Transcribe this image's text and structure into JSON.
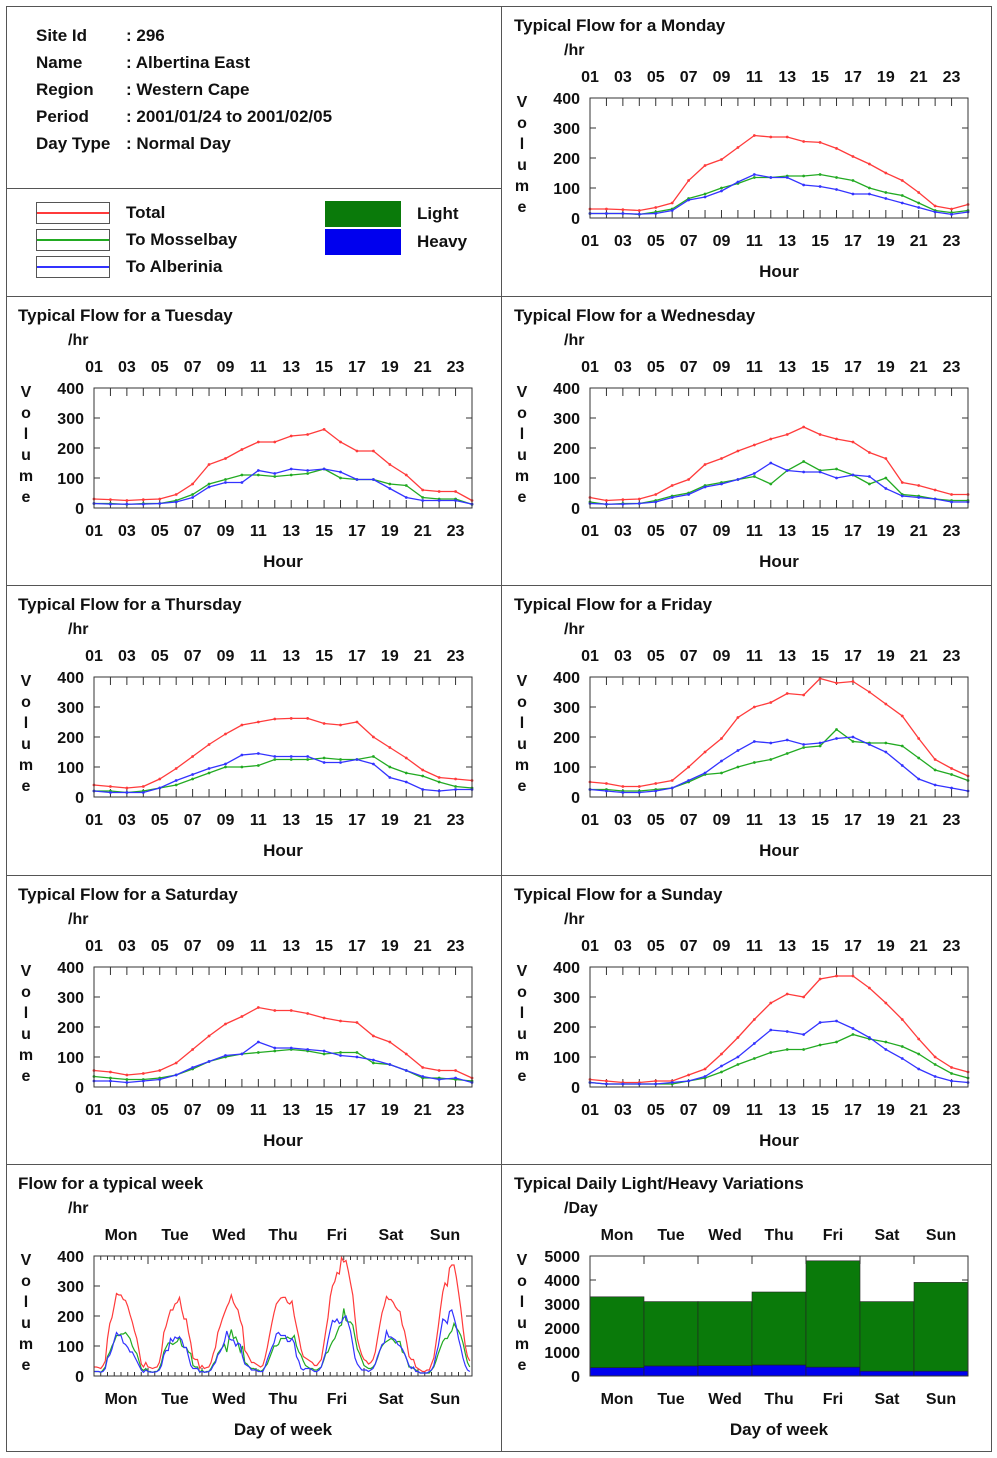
{
  "site_info": [
    {
      "key": "Site Id",
      "value": ": 296"
    },
    {
      "key": "Name",
      "value": ": Albertina East"
    },
    {
      "key": "Region",
      "value": ": Western Cape"
    },
    {
      "key": "Period",
      "value": ": 2001/01/24 to 2001/02/05"
    },
    {
      "key": "Day Type",
      "value": ": Normal Day"
    }
  ],
  "legend": {
    "total": "Total",
    "mosselbay": "To Mosselbay",
    "alberinia": "To Alberinia",
    "light": "Light",
    "heavy": "Heavy"
  },
  "colors": {
    "total": "#ff3b3b",
    "mosselbay": "#22aa22",
    "alberinia": "#3333ff",
    "light": "#0a7a0a",
    "heavy": "#0000ee"
  },
  "labels": {
    "unit_hr": "/hr",
    "unit_day": "/Day",
    "volume": "Volume",
    "hour": "Hour",
    "day_of_week": "Day of week"
  },
  "chart_data": [
    {
      "type": "line",
      "title": "Typical Flow for a Monday",
      "xlabel": "Hour",
      "ylabel": "Volume",
      "unit": "/hr",
      "x": [
        0,
        1,
        2,
        3,
        4,
        5,
        6,
        7,
        8,
        9,
        10,
        11,
        12,
        13,
        14,
        15,
        16,
        17,
        18,
        19,
        20,
        21,
        22,
        23
      ],
      "xticks": [
        "01",
        "03",
        "05",
        "07",
        "09",
        "11",
        "13",
        "15",
        "17",
        "19",
        "21",
        "23"
      ],
      "ylim": [
        0,
        400
      ],
      "yticks": [
        0,
        100,
        200,
        300,
        400
      ],
      "series": [
        {
          "name": "Total",
          "values": [
            30,
            30,
            28,
            25,
            35,
            50,
            125,
            175,
            195,
            235,
            275,
            270,
            270,
            255,
            252,
            232,
            205,
            180,
            150,
            125,
            85,
            40,
            30,
            45
          ]
        },
        {
          "name": "To Mosselbay",
          "values": [
            15,
            15,
            15,
            12,
            20,
            30,
            65,
            80,
            100,
            115,
            135,
            135,
            140,
            140,
            145,
            135,
            125,
            100,
            85,
            75,
            50,
            25,
            18,
            25
          ]
        },
        {
          "name": "To Alberinia",
          "values": [
            15,
            15,
            15,
            13,
            15,
            25,
            60,
            70,
            90,
            120,
            145,
            135,
            135,
            110,
            105,
            95,
            80,
            80,
            65,
            50,
            35,
            20,
            12,
            20
          ]
        }
      ]
    },
    {
      "type": "line",
      "title": "Typical Flow for a Tuesday",
      "xlabel": "Hour",
      "ylabel": "Volume",
      "unit": "/hr",
      "x": [
        0,
        1,
        2,
        3,
        4,
        5,
        6,
        7,
        8,
        9,
        10,
        11,
        12,
        13,
        14,
        15,
        16,
        17,
        18,
        19,
        20,
        21,
        22,
        23
      ],
      "xticks": [
        "01",
        "03",
        "05",
        "07",
        "09",
        "11",
        "13",
        "15",
        "17",
        "19",
        "21",
        "23"
      ],
      "ylim": [
        0,
        400
      ],
      "yticks": [
        0,
        100,
        200,
        300,
        400
      ],
      "series": [
        {
          "name": "Total",
          "values": [
            30,
            28,
            25,
            28,
            30,
            45,
            80,
            145,
            165,
            195,
            220,
            220,
            240,
            245,
            262,
            220,
            190,
            190,
            145,
            110,
            60,
            55,
            55,
            25
          ]
        },
        {
          "name": "To Mosselbay",
          "values": [
            15,
            15,
            12,
            15,
            15,
            25,
            45,
            80,
            95,
            110,
            110,
            105,
            110,
            115,
            130,
            100,
            95,
            95,
            80,
            75,
            35,
            30,
            30,
            12
          ]
        },
        {
          "name": "To Alberinia",
          "values": [
            15,
            13,
            13,
            13,
            15,
            20,
            35,
            70,
            85,
            85,
            125,
            115,
            130,
            125,
            130,
            120,
            95,
            95,
            65,
            35,
            25,
            25,
            25,
            13
          ]
        }
      ]
    },
    {
      "type": "line",
      "title": "Typical Flow for a Wednesday",
      "xlabel": "Hour",
      "ylabel": "Volume",
      "unit": "/hr",
      "x": [
        0,
        1,
        2,
        3,
        4,
        5,
        6,
        7,
        8,
        9,
        10,
        11,
        12,
        13,
        14,
        15,
        16,
        17,
        18,
        19,
        20,
        21,
        22,
        23
      ],
      "xticks": [
        "01",
        "03",
        "05",
        "07",
        "09",
        "11",
        "13",
        "15",
        "17",
        "19",
        "21",
        "23"
      ],
      "ylim": [
        0,
        400
      ],
      "yticks": [
        0,
        100,
        200,
        300,
        400
      ],
      "series": [
        {
          "name": "Total",
          "values": [
            35,
            25,
            28,
            30,
            45,
            75,
            95,
            145,
            165,
            190,
            210,
            230,
            245,
            270,
            245,
            230,
            220,
            185,
            165,
            85,
            75,
            60,
            45,
            45
          ]
        },
        {
          "name": "To Mosselbay",
          "values": [
            20,
            12,
            15,
            15,
            25,
            40,
            50,
            75,
            85,
            95,
            105,
            80,
            125,
            155,
            125,
            130,
            110,
            80,
            100,
            45,
            40,
            30,
            25,
            25
          ]
        },
        {
          "name": "To Alberinia",
          "values": [
            15,
            13,
            13,
            15,
            20,
            35,
            45,
            70,
            80,
            95,
            115,
            150,
            125,
            120,
            120,
            100,
            110,
            105,
            65,
            40,
            35,
            30,
            20,
            20
          ]
        }
      ]
    },
    {
      "type": "line",
      "title": "Typical Flow for a Thursday",
      "xlabel": "Hour",
      "ylabel": "Volume",
      "unit": "/hr",
      "x": [
        0,
        1,
        2,
        3,
        4,
        5,
        6,
        7,
        8,
        9,
        10,
        11,
        12,
        13,
        14,
        15,
        16,
        17,
        18,
        19,
        20,
        21,
        22,
        23
      ],
      "xticks": [
        "01",
        "03",
        "05",
        "07",
        "09",
        "11",
        "13",
        "15",
        "17",
        "19",
        "21",
        "23"
      ],
      "ylim": [
        0,
        400
      ],
      "yticks": [
        0,
        100,
        200,
        300,
        400
      ],
      "series": [
        {
          "name": "Total",
          "values": [
            40,
            35,
            30,
            35,
            60,
            95,
            135,
            175,
            210,
            240,
            250,
            260,
            262,
            262,
            245,
            240,
            250,
            200,
            165,
            130,
            90,
            65,
            60,
            55
          ]
        },
        {
          "name": "To Mosselbay",
          "values": [
            20,
            20,
            15,
            20,
            30,
            40,
            60,
            80,
            100,
            100,
            105,
            125,
            125,
            125,
            130,
            125,
            125,
            135,
            100,
            80,
            70,
            50,
            35,
            30
          ]
        },
        {
          "name": "To Alberinia",
          "values": [
            20,
            15,
            15,
            15,
            30,
            55,
            75,
            95,
            110,
            140,
            145,
            135,
            135,
            135,
            115,
            115,
            125,
            110,
            65,
            50,
            25,
            20,
            25,
            25
          ]
        }
      ]
    },
    {
      "type": "line",
      "title": "Typical Flow for a Friday",
      "xlabel": "Hour",
      "ylabel": "Volume",
      "unit": "/hr",
      "x": [
        0,
        1,
        2,
        3,
        4,
        5,
        6,
        7,
        8,
        9,
        10,
        11,
        12,
        13,
        14,
        15,
        16,
        17,
        18,
        19,
        20,
        21,
        22,
        23
      ],
      "xticks": [
        "01",
        "03",
        "05",
        "07",
        "09",
        "11",
        "13",
        "15",
        "17",
        "19",
        "21",
        "23"
      ],
      "ylim": [
        0,
        400
      ],
      "yticks": [
        0,
        100,
        200,
        300,
        400
      ],
      "series": [
        {
          "name": "Total",
          "values": [
            50,
            45,
            35,
            35,
            45,
            55,
            100,
            150,
            195,
            265,
            300,
            315,
            345,
            340,
            395,
            380,
            385,
            350,
            310,
            270,
            195,
            125,
            95,
            70
          ]
        },
        {
          "name": "To Mosselbay",
          "values": [
            25,
            25,
            20,
            20,
            25,
            30,
            50,
            75,
            80,
            100,
            115,
            125,
            145,
            165,
            170,
            225,
            185,
            180,
            180,
            170,
            130,
            90,
            75,
            55
          ]
        },
        {
          "name": "To Alberinia",
          "values": [
            25,
            20,
            15,
            15,
            20,
            30,
            55,
            80,
            120,
            155,
            185,
            180,
            190,
            175,
            180,
            195,
            200,
            175,
            150,
            105,
            60,
            40,
            30,
            20
          ]
        }
      ]
    },
    {
      "type": "line",
      "title": "Typical Flow for a Saturday",
      "xlabel": "Hour",
      "ylabel": "Volume",
      "unit": "/hr",
      "x": [
        0,
        1,
        2,
        3,
        4,
        5,
        6,
        7,
        8,
        9,
        10,
        11,
        12,
        13,
        14,
        15,
        16,
        17,
        18,
        19,
        20,
        21,
        22,
        23
      ],
      "xticks": [
        "01",
        "03",
        "05",
        "07",
        "09",
        "11",
        "13",
        "15",
        "17",
        "19",
        "21",
        "23"
      ],
      "ylim": [
        0,
        400
      ],
      "yticks": [
        0,
        100,
        200,
        300,
        400
      ],
      "series": [
        {
          "name": "Total",
          "values": [
            55,
            50,
            40,
            45,
            55,
            80,
            125,
            170,
            210,
            235,
            265,
            255,
            255,
            245,
            230,
            220,
            215,
            170,
            150,
            110,
            65,
            55,
            55,
            30
          ]
        },
        {
          "name": "To Mosselbay",
          "values": [
            35,
            30,
            25,
            25,
            30,
            40,
            60,
            85,
            100,
            110,
            115,
            120,
            125,
            120,
            110,
            115,
            115,
            80,
            75,
            55,
            30,
            30,
            25,
            20
          ]
        },
        {
          "name": "To Alberinia",
          "values": [
            20,
            20,
            15,
            20,
            25,
            40,
            65,
            85,
            105,
            110,
            150,
            130,
            130,
            125,
            120,
            105,
            100,
            90,
            75,
            55,
            35,
            25,
            30,
            15
          ]
        }
      ]
    },
    {
      "type": "line",
      "title": "Typical Flow for a Sunday",
      "xlabel": "Hour",
      "ylabel": "Volume",
      "unit": "/hr",
      "x": [
        0,
        1,
        2,
        3,
        4,
        5,
        6,
        7,
        8,
        9,
        10,
        11,
        12,
        13,
        14,
        15,
        16,
        17,
        18,
        19,
        20,
        21,
        22,
        23
      ],
      "xticks": [
        "01",
        "03",
        "05",
        "07",
        "09",
        "11",
        "13",
        "15",
        "17",
        "19",
        "21",
        "23"
      ],
      "ylim": [
        0,
        400
      ],
      "yticks": [
        0,
        100,
        200,
        300,
        400
      ],
      "series": [
        {
          "name": "Total",
          "values": [
            25,
            20,
            15,
            15,
            20,
            20,
            40,
            60,
            110,
            165,
            225,
            280,
            310,
            300,
            360,
            370,
            370,
            330,
            280,
            225,
            160,
            100,
            65,
            50
          ]
        },
        {
          "name": "To Mosselbay",
          "values": [
            15,
            10,
            10,
            10,
            10,
            10,
            20,
            30,
            50,
            75,
            95,
            115,
            125,
            125,
            140,
            150,
            175,
            160,
            150,
            135,
            110,
            75,
            45,
            30
          ]
        },
        {
          "name": "To Alberinia",
          "values": [
            15,
            10,
            10,
            10,
            10,
            15,
            20,
            35,
            70,
            100,
            145,
            190,
            185,
            175,
            215,
            220,
            195,
            165,
            125,
            95,
            60,
            35,
            20,
            15
          ]
        }
      ]
    },
    {
      "type": "line",
      "title": "Flow for a typical week",
      "xlabel": "Day of week",
      "ylabel": "Volume",
      "unit": "/hr",
      "xticks": [
        "Mon",
        "Tue",
        "Wed",
        "Thu",
        "Fri",
        "Sat",
        "Sun"
      ],
      "ylim": [
        0,
        400
      ],
      "yticks": [
        0,
        100,
        200,
        300,
        400
      ],
      "note": "168 hourly points formed by concatenating the seven daily profiles above (Mon..Sun)",
      "series_names": [
        "Total",
        "To Mosselbay",
        "To Alberinia"
      ]
    },
    {
      "type": "bar",
      "title": "Typical Daily Light/Heavy Variations",
      "xlabel": "Day of week",
      "ylabel": "Volume",
      "unit": "/Day",
      "categories": [
        "Mon",
        "Tue",
        "Wed",
        "Thu",
        "Fri",
        "Sat",
        "Sun"
      ],
      "ylim": [
        0,
        5000
      ],
      "yticks": [
        0,
        1000,
        2000,
        3000,
        4000,
        5000
      ],
      "stacked": true,
      "series": [
        {
          "name": "Heavy",
          "values": [
            350,
            420,
            430,
            460,
            370,
            200,
            200
          ]
        },
        {
          "name": "Light",
          "values": [
            2950,
            2680,
            2670,
            3040,
            4430,
            2900,
            3700
          ]
        }
      ]
    }
  ]
}
